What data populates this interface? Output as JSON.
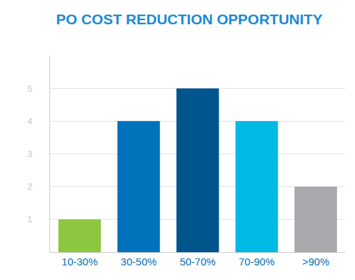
{
  "chart_data": {
    "type": "bar",
    "title": "PO COST REDUCTION OPPORTUNITY",
    "categories": [
      "10-30%",
      "30-50%",
      "50-70%",
      "70-90%",
      ">90%"
    ],
    "values": [
      1,
      4,
      5,
      4,
      2
    ],
    "colors": [
      "#8dc63f",
      "#0072bc",
      "#00558c",
      "#00b9e4",
      "#a7a9ac"
    ],
    "ylim": [
      0,
      6
    ],
    "yticks": [
      1,
      2,
      3,
      4,
      5
    ],
    "grid": true
  }
}
